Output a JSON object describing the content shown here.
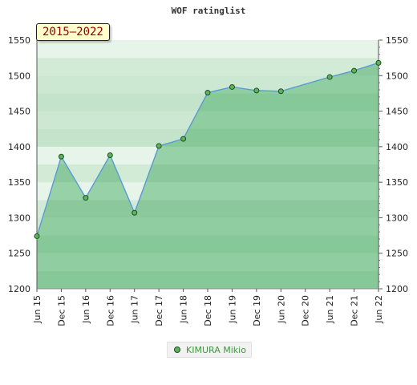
{
  "chart_data": {
    "type": "area",
    "title": "WOF ratinglist",
    "period_label": "2015–2022",
    "xlabel": "",
    "ylabel": "",
    "ylim": [
      1200,
      1550
    ],
    "y_ticks": [
      1200,
      1250,
      1300,
      1350,
      1400,
      1450,
      1500,
      1550
    ],
    "x_ticks": [
      "Jun 15",
      "Dec 15",
      "Jun 16",
      "Dec 16",
      "Jun 17",
      "Dec 17",
      "Jun 18",
      "Dec 18",
      "Jun 19",
      "Dec 19",
      "Jun 20",
      "Dec 20",
      "Jun 21",
      "Dec 21",
      "Jun 22"
    ],
    "series": [
      {
        "name": "KIMURA Mikio",
        "points": [
          {
            "x": "Jun 15",
            "y": 1274
          },
          {
            "x": "Dec 15",
            "y": 1386
          },
          {
            "x": "Jun 16",
            "y": 1328
          },
          {
            "x": "Dec 16",
            "y": 1388
          },
          {
            "x": "Jun 17",
            "y": 1307
          },
          {
            "x": "Dec 17",
            "y": 1401
          },
          {
            "x": "Jun 18",
            "y": 1411
          },
          {
            "x": "Dec 18",
            "y": 1476
          },
          {
            "x": "Jun 19",
            "y": 1484
          },
          {
            "x": "Dec 19",
            "y": 1479
          },
          {
            "x": "Jun 20",
            "y": 1478
          },
          {
            "x": "Jun 21",
            "y": 1498
          },
          {
            "x": "Dec 21",
            "y": 1507
          },
          {
            "x": "Jun 22",
            "y": 1518
          }
        ]
      }
    ],
    "colors": {
      "line": "#5b9bd5",
      "area": "#7cc590",
      "marker": "#5db35d",
      "marker_edge": "#1f4f1f",
      "band_light": "#e6f4e9",
      "band_dark": "#d2ebd7"
    },
    "grid": true,
    "legend_position": "bottom-center"
  }
}
